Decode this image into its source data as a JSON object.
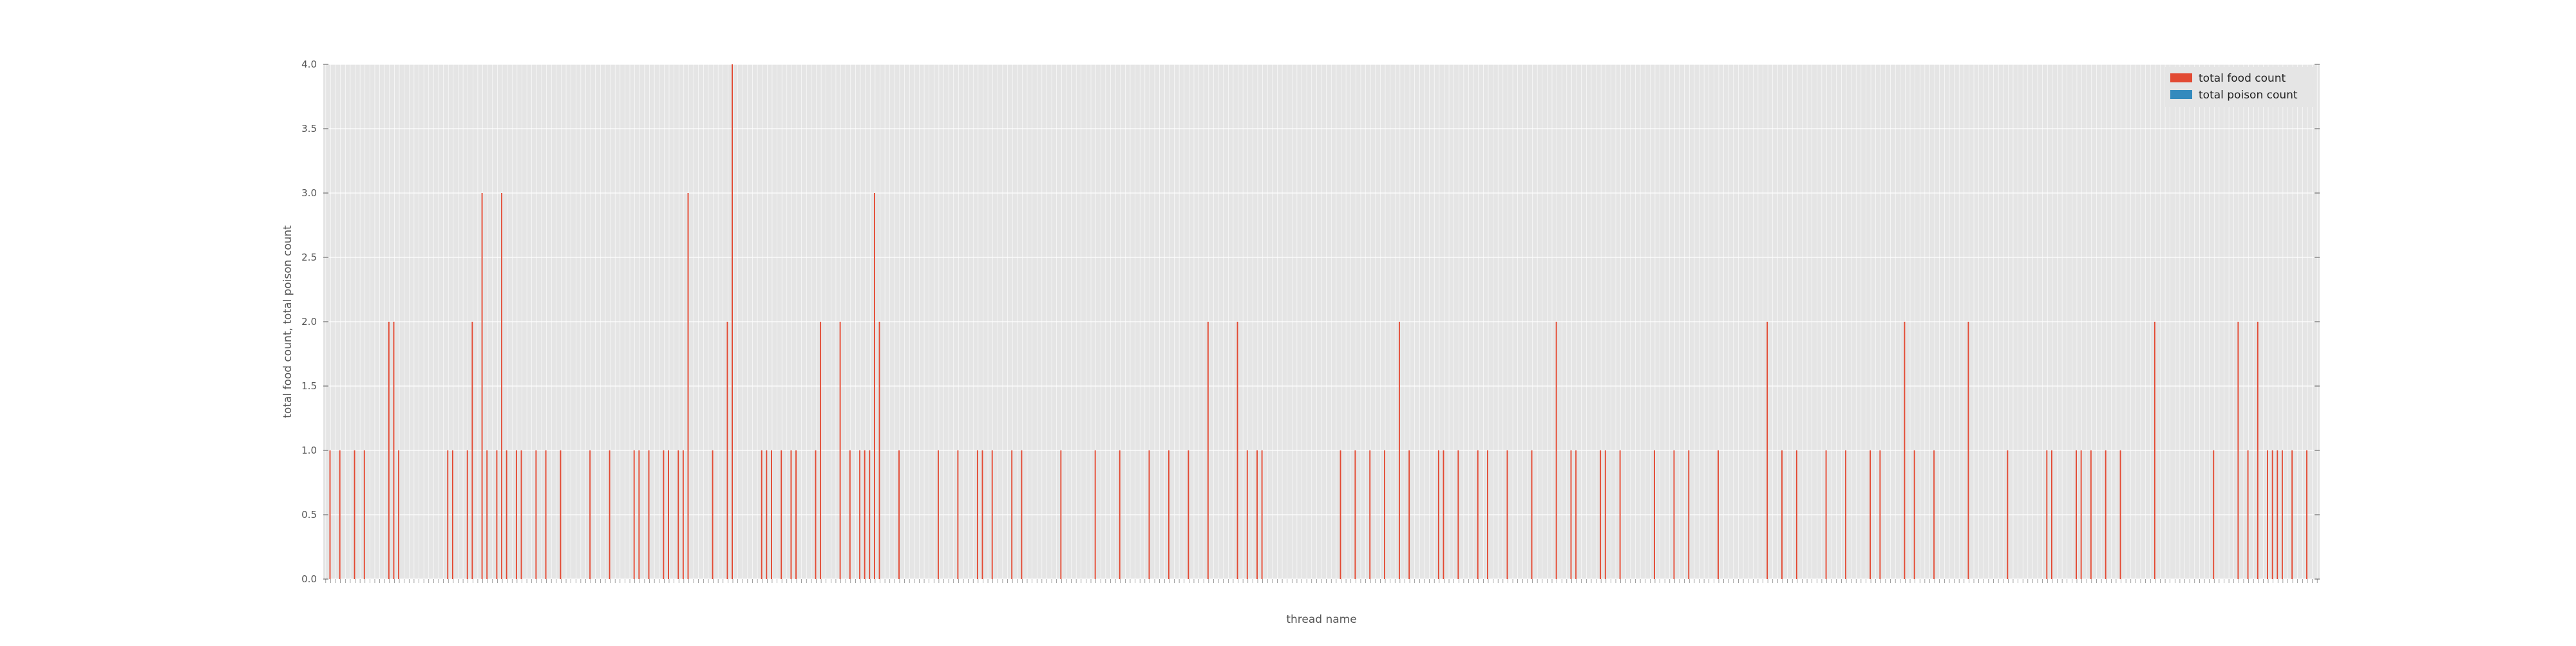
{
  "chart_data": {
    "type": "bar",
    "title": "",
    "xlabel": "thread name",
    "ylabel": "total food count, total poison count",
    "ylim": [
      0,
      4.0
    ],
    "yticks": [
      "0.0",
      "0.5",
      "1.0",
      "1.5",
      "2.0",
      "2.5",
      "3.0",
      "3.5",
      "4.0"
    ],
    "grid": true,
    "legend_position": "top-right",
    "style": "ggplot",
    "colors": {
      "background": "#e5e5e5",
      "grid": "#ffffff",
      "total_food_count": "#e24a33",
      "total_poison_count": "#348abd"
    },
    "x_tick_labels_note": "rotated thread-name tick labels are too small to read in the screenshot",
    "series": [
      {
        "name": "total food count",
        "color": "#e24a33",
        "values": [
          0,
          1,
          0,
          1,
          0,
          0,
          1,
          0,
          1,
          0,
          0,
          0,
          0,
          2,
          2,
          1,
          0,
          0,
          0,
          0,
          0,
          0,
          0,
          0,
          0,
          1,
          1,
          0,
          0,
          1,
          2,
          0,
          3,
          1,
          0,
          1,
          3,
          1,
          0,
          1,
          1,
          0,
          0,
          1,
          0,
          1,
          0,
          0,
          1,
          0,
          0,
          0,
          0,
          0,
          1,
          0,
          0,
          0,
          1,
          0,
          0,
          0,
          0,
          1,
          1,
          0,
          1,
          0,
          0,
          1,
          1,
          0,
          1,
          1,
          3,
          0,
          0,
          0,
          0,
          1,
          0,
          0,
          2,
          4,
          0,
          0,
          0,
          0,
          0,
          1,
          1,
          1,
          0,
          1,
          0,
          1,
          1,
          0,
          0,
          0,
          1,
          2,
          0,
          0,
          0,
          2,
          0,
          1,
          0,
          1,
          1,
          1,
          3,
          2,
          0,
          0,
          0,
          1,
          0,
          0,
          0,
          0,
          0,
          0,
          0,
          1,
          0,
          0,
          0,
          1,
          0,
          0,
          0,
          1,
          1,
          0,
          1,
          0,
          0,
          0,
          1,
          0,
          1,
          0,
          0,
          0,
          0,
          0,
          0,
          0,
          1,
          0,
          0,
          0,
          0,
          0,
          0,
          1,
          0,
          0,
          0,
          0,
          1,
          0,
          0,
          0,
          0,
          0,
          1,
          0,
          0,
          0,
          1,
          0,
          0,
          0,
          1,
          0,
          0,
          0,
          2,
          0,
          0,
          0,
          0,
          0,
          2,
          0,
          1,
          0,
          1,
          1,
          0,
          0,
          0,
          0,
          0,
          0,
          0,
          0,
          0,
          0,
          0,
          0,
          0,
          0,
          0,
          1,
          0,
          0,
          1,
          0,
          0,
          1,
          0,
          0,
          1,
          0,
          0,
          2,
          0,
          1,
          0,
          0,
          0,
          0,
          0,
          1,
          1,
          0,
          0,
          1,
          0,
          0,
          0,
          1,
          0,
          1,
          0,
          0,
          0,
          1,
          0,
          0,
          0,
          0,
          1,
          0,
          0,
          0,
          0,
          2,
          0,
          0,
          1,
          1,
          0,
          0,
          0,
          0,
          1,
          1,
          0,
          0,
          1,
          0,
          0,
          0,
          0,
          0,
          0,
          1,
          0,
          0,
          0,
          1,
          0,
          0,
          1,
          0,
          0,
          0,
          0,
          0,
          1,
          0,
          0,
          0,
          0,
          0,
          0,
          0,
          0,
          0,
          2,
          0,
          0,
          1,
          0,
          0,
          1,
          0,
          0,
          0,
          0,
          0,
          1,
          0,
          0,
          0,
          1,
          0,
          0,
          0,
          0,
          1,
          0,
          1,
          0,
          0,
          0,
          0,
          2,
          0,
          1,
          0,
          0,
          0,
          1,
          0,
          0,
          0,
          0,
          0,
          0,
          2,
          0,
          0,
          0,
          0,
          0,
          0,
          0,
          1,
          0,
          0,
          0,
          0,
          0,
          0,
          0,
          1,
          1,
          0,
          0,
          0,
          0,
          1,
          1,
          0,
          1,
          0,
          0,
          1,
          0,
          0,
          1,
          0,
          0,
          0,
          0,
          0,
          0,
          2,
          0,
          0,
          0,
          0,
          0,
          0,
          0,
          0,
          0,
          0,
          0,
          1,
          0,
          0,
          0,
          0,
          2,
          0,
          1,
          0,
          2,
          0,
          1,
          1,
          1,
          1,
          0,
          1,
          0,
          0,
          1,
          0,
          0
        ]
      },
      {
        "name": "total poison count",
        "color": "#348abd",
        "values": [
          0,
          0,
          0,
          0,
          0,
          0,
          0,
          0,
          0,
          0,
          0,
          0,
          0,
          0,
          0,
          0,
          0,
          0,
          0,
          0,
          0,
          0,
          0,
          0,
          0,
          0,
          0,
          0,
          0,
          0,
          0,
          0,
          0,
          0,
          0,
          0,
          0,
          0,
          0,
          0,
          0,
          0,
          0,
          0,
          0,
          0,
          0,
          0,
          0,
          0,
          0,
          0,
          0,
          0,
          0,
          0,
          0,
          0,
          0,
          0,
          0,
          0,
          0,
          0,
          0,
          0,
          0,
          0,
          0,
          0,
          0,
          0,
          0,
          0,
          0,
          0,
          0,
          0,
          0,
          0,
          0,
          0,
          0,
          0,
          0,
          0,
          0,
          0,
          0,
          0,
          0,
          0,
          0,
          0,
          0,
          0,
          0,
          0,
          0,
          0,
          0,
          0,
          0,
          0,
          0,
          0,
          0,
          0,
          0,
          0,
          0,
          0,
          0,
          0,
          0,
          0,
          0,
          0,
          0,
          0,
          0,
          0,
          0,
          0,
          0,
          0,
          0,
          0,
          0,
          0,
          0,
          0,
          0,
          0,
          0,
          0,
          0,
          0,
          0,
          0,
          0,
          0,
          0,
          0,
          0,
          0,
          0,
          0,
          0,
          0,
          0,
          0,
          0,
          0,
          0,
          0,
          0,
          0,
          0,
          0,
          0,
          0,
          0,
          0,
          0,
          0,
          0,
          0,
          0,
          0,
          0,
          0,
          0,
          0,
          0,
          0,
          0,
          0,
          0,
          0,
          0,
          0,
          0,
          0,
          0,
          0,
          0,
          0,
          0,
          0,
          0,
          0,
          0,
          0,
          0,
          0,
          0,
          0,
          0,
          0,
          0,
          0,
          0,
          0,
          0,
          0,
          0,
          0,
          0,
          0,
          0,
          0,
          0,
          0,
          0,
          0,
          0,
          0,
          0,
          0,
          0,
          0,
          0,
          0,
          0,
          0,
          0,
          0,
          0,
          0,
          0,
          0,
          0,
          0,
          0,
          0,
          0,
          0,
          0,
          0,
          0,
          0,
          0,
          0,
          0,
          0,
          0,
          0,
          0,
          0,
          0,
          0,
          0,
          0,
          0,
          0,
          0,
          0,
          0,
          0,
          0,
          0,
          0,
          0,
          0,
          0,
          0,
          0,
          0,
          0,
          0,
          0,
          0,
          0,
          0,
          0,
          0,
          0,
          0,
          0,
          0,
          0,
          0,
          0,
          0,
          0,
          0,
          0,
          0,
          0,
          0,
          0,
          0,
          0,
          0,
          0,
          0,
          0,
          0,
          0,
          0,
          0,
          0,
          0,
          0,
          0,
          0,
          0,
          0,
          0,
          0,
          0,
          0,
          0,
          0,
          0,
          0,
          0,
          0,
          0,
          0,
          0,
          0,
          0,
          0,
          0,
          0,
          0,
          0,
          0,
          0,
          0,
          0,
          0,
          0,
          0,
          0,
          0,
          0,
          0,
          0,
          0,
          0,
          0,
          0,
          0,
          0,
          0,
          0,
          0,
          0,
          0,
          0,
          0,
          0,
          0,
          0,
          0,
          0,
          0,
          0,
          0,
          0,
          0,
          0,
          0,
          0,
          0,
          0,
          0,
          0,
          0,
          0,
          0,
          0,
          0,
          0,
          0,
          0,
          0,
          0,
          0,
          0,
          0,
          0,
          0,
          0,
          0,
          0,
          0,
          0,
          0,
          0,
          0,
          0,
          0,
          0,
          0,
          0,
          0,
          0,
          0,
          0,
          0,
          0,
          0,
          0,
          0,
          0,
          0,
          0,
          0,
          0
        ]
      }
    ]
  }
}
